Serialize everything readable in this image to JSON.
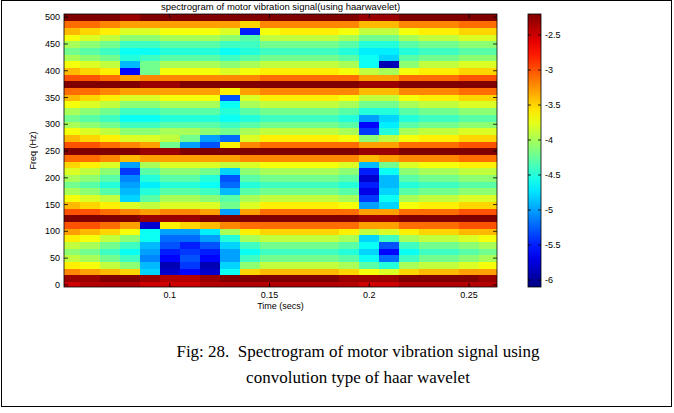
{
  "chart_data": {
    "type": "heatmap",
    "title": "spectrogram of motor vibration signal(using haarwavelet)",
    "xlabel": "Time (secs)",
    "ylabel": "Freq (Hz)",
    "caption": [
      "Fig: 28.  Spectrogram of motor vibration signal using",
      "convolution type of haar wavelet"
    ],
    "xlim": [
      0.047,
      0.264
    ],
    "ylim": [
      -4,
      506
    ],
    "xticks": [
      0.1,
      0.15,
      0.2,
      0.25
    ],
    "yticks": [
      0,
      50,
      100,
      150,
      200,
      250,
      300,
      350,
      400,
      450,
      500
    ],
    "colorbar_lim": [
      -6.1,
      -2.2
    ],
    "colorbar_ticks": [
      -2.5,
      -3,
      -3.5,
      -4,
      -4.5,
      -5,
      -5.5,
      -6
    ],
    "x": [
      0.05,
      0.06,
      0.07,
      0.08,
      0.09,
      0.1,
      0.11,
      0.12,
      0.13,
      0.14,
      0.15,
      0.16,
      0.17,
      0.18,
      0.19,
      0.2,
      0.21,
      0.22,
      0.23,
      0.24,
      0.25,
      0.26
    ],
    "y": [
      0,
      12.5,
      25,
      37.5,
      50,
      62.5,
      75,
      87.5,
      100,
      112.5,
      125,
      137.5,
      150,
      162.5,
      175,
      187.5,
      200,
      212.5,
      225,
      237.5,
      250,
      262.5,
      275,
      287.5,
      300,
      312.5,
      325,
      337.5,
      350,
      362.5,
      375,
      387.5,
      400,
      412.5,
      425,
      437.5,
      450,
      462.5,
      475,
      487.5,
      500
    ],
    "cells": [
      [
        -2.5,
        -2.4,
        -2.4,
        -2.4,
        -2.5,
        -2.5,
        -2.5,
        -2.4,
        -2.4,
        -2.4,
        -2.4,
        -2.4,
        -2.4,
        -2.4,
        -2.4,
        -2.5,
        -2.5,
        -2.4,
        -2.4,
        -2.4,
        -2.4,
        -2.4
      ],
      [
        -2.3,
        -2.3,
        -2.2,
        -2.2,
        -2.3,
        -2.4,
        -2.4,
        -2.3,
        -2.2,
        -2.2,
        -2.2,
        -2.2,
        -2.2,
        -2.2,
        -2.3,
        -2.3,
        -2.3,
        -2.2,
        -2.2,
        -2.2,
        -2.2,
        -2.3
      ],
      [
        -3.2,
        -3.3,
        -3.4,
        -3.5,
        -4.8,
        -5.8,
        -5.6,
        -5.8,
        -4.6,
        -3.5,
        -3.4,
        -3.4,
        -3.4,
        -3.4,
        -3.5,
        -3.7,
        -3.8,
        -3.5,
        -3.4,
        -3.4,
        -3.3,
        -3.3
      ],
      [
        -3.6,
        -3.7,
        -3.9,
        -4.1,
        -4.9,
        -5.9,
        -5.4,
        -5.9,
        -4.8,
        -4.1,
        -3.9,
        -3.9,
        -3.9,
        -3.9,
        -4.0,
        -4.3,
        -4.5,
        -4.0,
        -3.9,
        -3.9,
        -3.8,
        -3.7
      ],
      [
        -3.9,
        -4.0,
        -4.2,
        -4.4,
        -5.1,
        -5.6,
        -5.3,
        -5.6,
        -5.0,
        -4.4,
        -4.2,
        -4.2,
        -4.2,
        -4.2,
        -4.3,
        -4.6,
        -5.2,
        -4.4,
        -4.2,
        -4.2,
        -4.1,
        -4.0
      ],
      [
        -4.1,
        -4.2,
        -4.4,
        -4.6,
        -5.0,
        -5.5,
        -5.4,
        -5.5,
        -5.0,
        -4.6,
        -4.4,
        -4.4,
        -4.4,
        -4.4,
        -4.5,
        -4.8,
        -5.6,
        -4.6,
        -4.4,
        -4.4,
        -4.3,
        -4.2
      ],
      [
        -3.9,
        -4.0,
        -4.2,
        -4.4,
        -4.9,
        -5.3,
        -5.5,
        -5.3,
        -4.8,
        -4.4,
        -4.2,
        -4.2,
        -4.2,
        -4.2,
        -4.3,
        -4.6,
        -5.3,
        -4.4,
        -4.2,
        -4.2,
        -4.1,
        -4.0
      ],
      [
        -3.6,
        -3.7,
        -3.9,
        -4.1,
        -4.6,
        -5.2,
        -5.2,
        -5.0,
        -4.5,
        -4.0,
        -3.9,
        -3.9,
        -3.9,
        -3.9,
        -4.0,
        -4.8,
        -4.4,
        -4.0,
        -3.9,
        -3.9,
        -3.8,
        -3.7
      ],
      [
        -3.3,
        -3.4,
        -3.5,
        -3.7,
        -4.6,
        -5.0,
        -5.0,
        -4.7,
        -4.0,
        -3.6,
        -3.5,
        -3.5,
        -3.5,
        -3.5,
        -3.6,
        -3.9,
        -3.8,
        -3.6,
        -3.5,
        -3.5,
        -3.4,
        -3.4
      ],
      [
        -3.0,
        -3.0,
        -3.1,
        -3.3,
        -5.8,
        -3.6,
        -3.5,
        -3.4,
        -3.2,
        -3.1,
        -3.1,
        -3.1,
        -3.1,
        -3.1,
        -3.1,
        -3.3,
        -3.3,
        -3.1,
        -3.1,
        -3.1,
        -3.0,
        -3.0
      ],
      [
        -2.2,
        -2.2,
        -2.2,
        -2.2,
        -2.3,
        -2.3,
        -2.3,
        -2.2,
        -2.2,
        -2.2,
        -2.2,
        -2.2,
        -2.2,
        -2.2,
        -2.2,
        -2.3,
        -2.3,
        -2.2,
        -2.2,
        -2.2,
        -2.2,
        -2.2
      ],
      [
        -3.0,
        -3.0,
        -3.1,
        -3.2,
        -3.3,
        -3.2,
        -3.2,
        -3.3,
        -5.0,
        -3.3,
        -3.1,
        -3.1,
        -3.1,
        -3.1,
        -3.1,
        -3.3,
        -3.3,
        -3.1,
        -3.1,
        -3.1,
        -3.0,
        -3.0
      ],
      [
        -3.4,
        -3.5,
        -3.6,
        -3.8,
        -3.9,
        -3.8,
        -3.8,
        -3.8,
        -4.2,
        -3.8,
        -3.6,
        -3.6,
        -3.6,
        -3.6,
        -3.7,
        -5.0,
        -4.8,
        -3.7,
        -3.6,
        -3.6,
        -3.5,
        -3.5
      ],
      [
        -3.7,
        -3.8,
        -3.9,
        -4.8,
        -4.3,
        -4.0,
        -4.0,
        -4.1,
        -4.3,
        -4.0,
        -3.9,
        -3.9,
        -3.9,
        -3.9,
        -4.0,
        -5.4,
        -4.6,
        -4.0,
        -3.9,
        -3.9,
        -3.8,
        -3.8
      ],
      [
        -4.0,
        -4.1,
        -4.3,
        -4.9,
        -4.5,
        -4.3,
        -4.3,
        -4.4,
        -4.9,
        -4.3,
        -4.2,
        -4.2,
        -4.2,
        -4.2,
        -4.3,
        -5.7,
        -4.8,
        -4.3,
        -4.2,
        -4.2,
        -4.1,
        -4.1
      ],
      [
        -4.2,
        -4.3,
        -4.5,
        -5.0,
        -4.7,
        -4.5,
        -4.5,
        -4.6,
        -5.2,
        -4.5,
        -4.4,
        -4.4,
        -4.4,
        -4.4,
        -4.5,
        -5.5,
        -4.9,
        -4.5,
        -4.4,
        -4.4,
        -4.3,
        -4.3
      ],
      [
        -4.0,
        -4.1,
        -4.3,
        -5.1,
        -4.5,
        -4.3,
        -4.3,
        -4.5,
        -5.3,
        -4.3,
        -4.2,
        -4.2,
        -4.2,
        -4.2,
        -4.3,
        -5.8,
        -4.9,
        -4.3,
        -4.2,
        -4.2,
        -4.1,
        -4.1
      ],
      [
        -3.8,
        -3.9,
        -4.1,
        -5.4,
        -4.3,
        -4.1,
        -4.1,
        -4.2,
        -4.8,
        -4.1,
        -4.0,
        -4.0,
        -4.0,
        -4.0,
        -4.1,
        -5.5,
        -4.6,
        -4.1,
        -4.0,
        -4.0,
        -3.9,
        -3.9
      ],
      [
        -3.5,
        -3.6,
        -3.8,
        -5.0,
        -4.0,
        -3.8,
        -3.8,
        -3.8,
        -3.9,
        -3.8,
        -3.7,
        -3.7,
        -3.7,
        -3.7,
        -3.8,
        -4.9,
        -4.2,
        -3.8,
        -3.7,
        -3.7,
        -3.6,
        -3.6
      ],
      [
        -3.1,
        -3.1,
        -3.2,
        -3.4,
        -3.3,
        -3.3,
        -3.3,
        -3.3,
        -3.3,
        -3.2,
        -3.2,
        -3.2,
        -3.2,
        -3.2,
        -3.2,
        -3.4,
        -3.3,
        -3.2,
        -3.2,
        -3.2,
        -3.1,
        -3.1
      ],
      [
        -2.2,
        -2.2,
        -2.2,
        -2.2,
        -2.3,
        -2.3,
        -2.2,
        -2.2,
        -2.2,
        -2.2,
        -2.2,
        -2.2,
        -2.2,
        -2.2,
        -2.2,
        -2.3,
        -2.3,
        -2.2,
        -2.2,
        -2.2,
        -2.2,
        -2.2
      ],
      [
        -3.0,
        -3.0,
        -3.1,
        -3.2,
        -3.3,
        -4.2,
        -5.0,
        -5.3,
        -3.6,
        -3.2,
        -3.1,
        -3.1,
        -3.1,
        -3.1,
        -3.1,
        -3.3,
        -3.3,
        -3.1,
        -3.1,
        -3.1,
        -3.0,
        -3.0
      ],
      [
        -3.4,
        -3.5,
        -3.6,
        -3.8,
        -3.8,
        -3.9,
        -4.2,
        -5.0,
        -5.2,
        -3.8,
        -3.6,
        -3.6,
        -3.6,
        -3.6,
        -3.7,
        -4.1,
        -3.9,
        -3.7,
        -3.6,
        -3.6,
        -3.5,
        -3.5
      ],
      [
        -3.7,
        -3.8,
        -3.9,
        -4.1,
        -4.1,
        -4.0,
        -4.0,
        -4.1,
        -4.2,
        -4.0,
        -3.9,
        -3.9,
        -3.9,
        -3.9,
        -4.0,
        -5.4,
        -4.5,
        -4.0,
        -3.9,
        -3.9,
        -3.8,
        -3.8
      ],
      [
        -4.0,
        -4.1,
        -4.2,
        -4.4,
        -4.4,
        -4.3,
        -4.3,
        -4.3,
        -4.4,
        -4.3,
        -4.2,
        -4.2,
        -4.2,
        -4.2,
        -4.3,
        -5.6,
        -4.7,
        -4.3,
        -4.2,
        -4.2,
        -4.1,
        -4.1
      ],
      [
        -4.2,
        -4.3,
        -4.4,
        -4.6,
        -4.6,
        -4.5,
        -4.5,
        -4.5,
        -4.6,
        -4.5,
        -4.4,
        -4.4,
        -4.4,
        -4.4,
        -4.5,
        -5.0,
        -4.8,
        -4.5,
        -4.4,
        -4.4,
        -4.3,
        -4.3
      ],
      [
        -4.0,
        -4.1,
        -4.2,
        -4.4,
        -4.4,
        -4.3,
        -4.3,
        -4.3,
        -4.5,
        -4.3,
        -4.2,
        -4.2,
        -4.2,
        -4.2,
        -4.3,
        -4.5,
        -4.5,
        -4.3,
        -4.2,
        -4.2,
        -4.1,
        -4.1
      ],
      [
        -3.7,
        -3.8,
        -3.9,
        -4.1,
        -4.1,
        -4.0,
        -4.0,
        -4.0,
        -4.6,
        -4.0,
        -3.9,
        -3.9,
        -3.9,
        -3.9,
        -4.0,
        -4.2,
        -4.2,
        -4.0,
        -3.9,
        -3.9,
        -3.8,
        -3.8
      ],
      [
        -3.4,
        -3.5,
        -3.6,
        -3.8,
        -3.8,
        -3.7,
        -3.7,
        -3.7,
        -5.3,
        -3.8,
        -3.6,
        -3.6,
        -3.6,
        -3.6,
        -3.7,
        -3.9,
        -3.9,
        -3.7,
        -3.6,
        -3.6,
        -3.5,
        -3.5
      ],
      [
        -3.1,
        -3.1,
        -3.2,
        -3.3,
        -3.3,
        -3.3,
        -3.3,
        -3.3,
        -3.6,
        -3.3,
        -3.2,
        -3.2,
        -3.2,
        -3.2,
        -3.2,
        -3.4,
        -3.4,
        -3.2,
        -3.2,
        -3.2,
        -3.1,
        -3.1
      ],
      [
        -2.2,
        -2.2,
        -2.2,
        -2.2,
        -2.3,
        -2.3,
        -2.2,
        -2.2,
        -2.2,
        -2.2,
        -2.2,
        -2.2,
        -2.2,
        -2.2,
        -2.2,
        -2.3,
        -2.3,
        -2.2,
        -2.2,
        -2.2,
        -2.2,
        -2.2
      ],
      [
        -3.0,
        -3.0,
        -3.1,
        -3.3,
        -3.2,
        -3.2,
        -3.2,
        -3.2,
        -3.2,
        -3.2,
        -3.1,
        -3.1,
        -3.1,
        -3.1,
        -3.1,
        -3.3,
        -3.3,
        -3.1,
        -3.1,
        -3.1,
        -3.0,
        -3.0
      ],
      [
        -3.4,
        -3.5,
        -3.6,
        -5.6,
        -4.2,
        -3.7,
        -3.7,
        -3.7,
        -3.8,
        -3.7,
        -3.6,
        -3.6,
        -3.6,
        -3.6,
        -3.7,
        -3.9,
        -4.0,
        -3.7,
        -3.6,
        -3.6,
        -3.5,
        -3.5
      ],
      [
        -3.7,
        -3.8,
        -3.9,
        -4.9,
        -4.2,
        -4.0,
        -4.0,
        -4.0,
        -4.1,
        -4.0,
        -3.9,
        -3.9,
        -3.9,
        -3.9,
        -4.0,
        -4.6,
        -5.9,
        -4.1,
        -3.9,
        -3.9,
        -3.8,
        -3.8
      ],
      [
        -4.0,
        -4.1,
        -4.2,
        -4.5,
        -4.4,
        -4.3,
        -4.3,
        -4.3,
        -4.4,
        -4.3,
        -4.2,
        -4.2,
        -4.2,
        -4.2,
        -4.3,
        -4.6,
        -4.8,
        -4.3,
        -4.2,
        -4.2,
        -4.1,
        -4.1
      ],
      [
        -4.2,
        -4.3,
        -4.4,
        -4.6,
        -4.6,
        -4.5,
        -4.5,
        -4.5,
        -4.6,
        -4.5,
        -4.4,
        -4.4,
        -4.4,
        -4.4,
        -4.5,
        -4.7,
        -4.7,
        -4.5,
        -4.4,
        -4.4,
        -4.3,
        -4.3
      ],
      [
        -4.0,
        -4.1,
        -4.2,
        -4.4,
        -4.4,
        -4.3,
        -4.3,
        -4.3,
        -4.4,
        -4.4,
        -4.2,
        -4.2,
        -4.2,
        -4.2,
        -4.3,
        -4.5,
        -4.5,
        -4.3,
        -4.2,
        -4.2,
        -4.1,
        -4.1
      ],
      [
        -3.7,
        -3.8,
        -3.9,
        -4.1,
        -4.1,
        -4.0,
        -4.0,
        -4.0,
        -4.1,
        -4.3,
        -3.9,
        -3.9,
        -3.9,
        -3.9,
        -4.0,
        -4.2,
        -4.2,
        -4.0,
        -3.9,
        -3.9,
        -3.8,
        -3.8
      ],
      [
        -3.4,
        -3.5,
        -3.6,
        -3.8,
        -3.8,
        -3.7,
        -3.7,
        -3.7,
        -3.8,
        -5.5,
        -3.7,
        -3.6,
        -3.6,
        -3.6,
        -3.7,
        -3.9,
        -3.9,
        -3.7,
        -3.6,
        -3.6,
        -3.5,
        -3.5
      ],
      [
        -3.1,
        -3.1,
        -3.2,
        -3.3,
        -3.3,
        -3.3,
        -3.3,
        -3.3,
        -3.3,
        -3.5,
        -3.2,
        -3.2,
        -3.2,
        -3.2,
        -3.2,
        -3.4,
        -3.4,
        -3.2,
        -3.2,
        -3.2,
        -3.1,
        -3.1
      ],
      [
        -2.2,
        -2.2,
        -2.2,
        -2.3,
        -2.2,
        -2.2,
        -2.2,
        -2.2,
        -2.2,
        -2.2,
        -2.2,
        -2.2,
        -2.2,
        -2.2,
        -2.2,
        -2.3,
        -2.3,
        -2.2,
        -2.2,
        -2.2,
        -2.2,
        -2.2
      ]
    ]
  }
}
